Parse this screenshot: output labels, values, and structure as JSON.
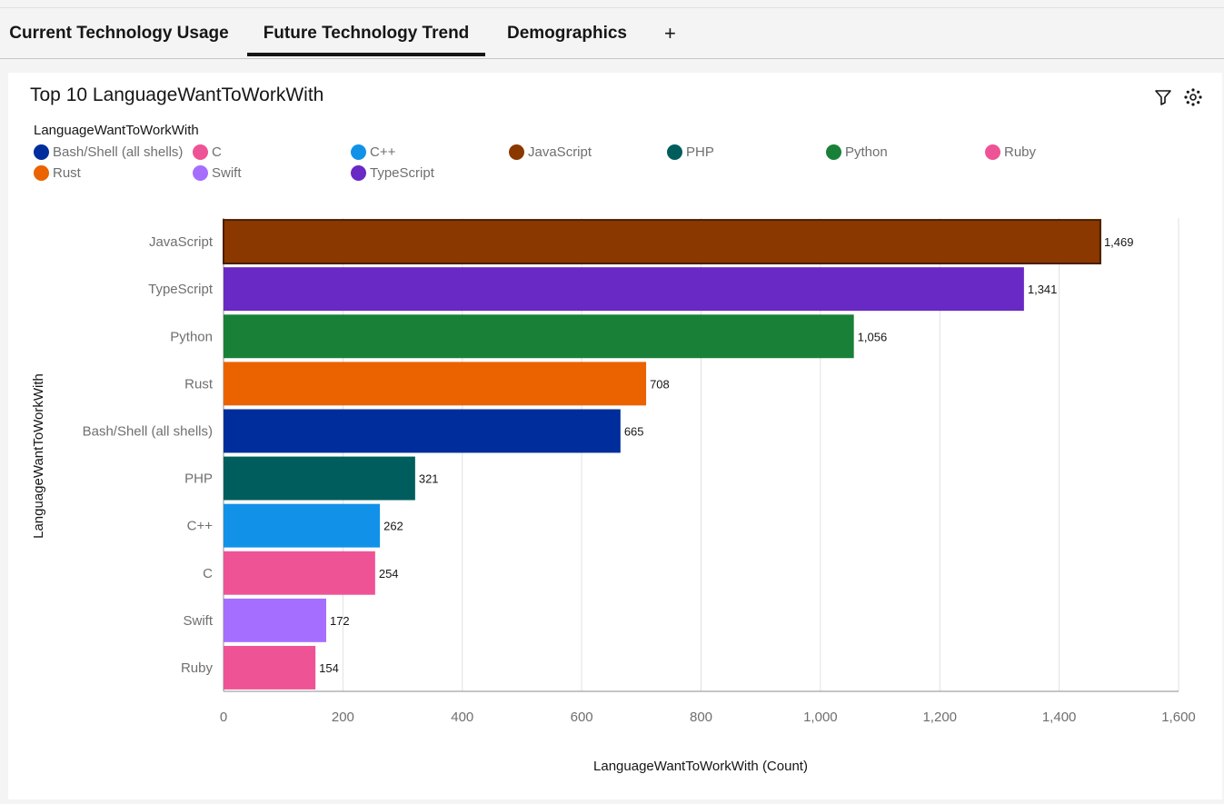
{
  "tabs": [
    {
      "label": "Current Technology Usage"
    },
    {
      "label": "Future Technology Trend"
    },
    {
      "label": "Demographics"
    }
  ],
  "tab_add_label": "+",
  "toolbar": {
    "filter_icon": "filter-icon",
    "focus_icon": "focus-icon"
  },
  "chart_data": {
    "type": "bar",
    "orientation": "horizontal",
    "title": "Top 10 LanguageWantToWorkWith",
    "legend_title": "LanguageWantToWorkWith",
    "legend_placement": "top-left",
    "legend": [
      {
        "name": "Bash/Shell (all shells)",
        "color": "#002d9c"
      },
      {
        "name": "C",
        "color": "#ee5396"
      },
      {
        "name": "C++",
        "color": "#1192e8"
      },
      {
        "name": "JavaScript",
        "color": "#8a3800"
      },
      {
        "name": "PHP",
        "color": "#005d5d"
      },
      {
        "name": "Python",
        "color": "#198038"
      },
      {
        "name": "Ruby",
        "color": "#ee5396"
      },
      {
        "name": "Rust",
        "color": "#eb6200"
      },
      {
        "name": "Swift",
        "color": "#a56eff"
      },
      {
        "name": "TypeScript",
        "color": "#6929c4"
      }
    ],
    "categories": [
      "JavaScript",
      "TypeScript",
      "Python",
      "Rust",
      "Bash/Shell (all shells)",
      "PHP",
      "C++",
      "C",
      "Swift",
      "Ruby"
    ],
    "values": [
      1469,
      1341,
      1056,
      708,
      665,
      321,
      262,
      254,
      172,
      154
    ],
    "value_labels": [
      "1,469",
      "1,341",
      "1,056",
      "708",
      "665",
      "321",
      "262",
      "254",
      "172",
      "154"
    ],
    "colors": [
      "#8a3800",
      "#6929c4",
      "#198038",
      "#eb6200",
      "#002d9c",
      "#005d5d",
      "#1192e8",
      "#ee5396",
      "#a56eff",
      "#ee5396"
    ],
    "xlabel": "LanguageWantToWorkWith (Count)",
    "ylabel": "LanguageWantToWorkWith",
    "xlim": [
      0,
      1600
    ],
    "xticks": [
      0,
      200,
      400,
      600,
      800,
      1000,
      1200,
      1400,
      1600
    ],
    "xtick_labels": [
      "0",
      "200",
      "400",
      "600",
      "800",
      "1,000",
      "1,200",
      "1,400",
      "1,600"
    ],
    "grid": true
  }
}
